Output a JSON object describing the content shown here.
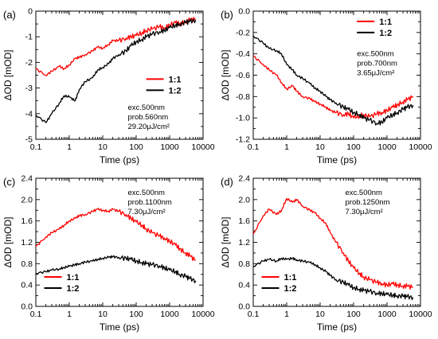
{
  "chart_data": [
    {
      "panel_label": "(a)",
      "type": "line",
      "xlabel": "Time (ps)",
      "ylabel": "ΔOD [mOD]",
      "xscale": "log",
      "xlim": [
        0.1,
        10000
      ],
      "xticks": [
        "0.1",
        "1",
        "10",
        "100",
        "1000",
        "10000"
      ],
      "ylim": [
        -5,
        0
      ],
      "yticks": [
        "-5",
        "-4",
        "-3",
        "-2",
        "-1",
        "0"
      ],
      "legend_position": "center-right",
      "annotation_lines": [
        "exc.500nm",
        "prob.560nm",
        "29.20μJ/cm²"
      ],
      "series": [
        {
          "name": "1:1",
          "color": "#ff0000",
          "x": [
            0.1,
            0.2,
            0.3,
            0.5,
            0.7,
            1,
            1.5,
            2,
            3,
            5,
            7,
            10,
            15,
            20,
            30,
            50,
            70,
            100,
            150,
            200,
            300,
            500,
            700,
            1000,
            1500,
            2000,
            3000,
            4000,
            6000
          ],
          "y": [
            -2.25,
            -2.5,
            -2.35,
            -2.15,
            -2.25,
            -2.1,
            -1.85,
            -1.8,
            -1.7,
            -1.55,
            -1.4,
            -1.45,
            -1.3,
            -1.15,
            -1.15,
            -1.05,
            -1.0,
            -0.95,
            -0.85,
            -0.75,
            -0.7,
            -0.6,
            -0.65,
            -0.55,
            -0.45,
            -0.5,
            -0.4,
            -0.35,
            -0.3
          ]
        },
        {
          "name": "1:2",
          "color": "#000000",
          "x": [
            0.1,
            0.2,
            0.3,
            0.5,
            0.7,
            1,
            1.5,
            2,
            3,
            5,
            7,
            10,
            15,
            20,
            30,
            50,
            70,
            100,
            150,
            200,
            300,
            500,
            700,
            1000,
            1500,
            2000,
            3000,
            4000,
            6000
          ],
          "y": [
            -4.05,
            -4.35,
            -4.0,
            -3.6,
            -3.3,
            -3.35,
            -3.5,
            -3.05,
            -2.75,
            -2.6,
            -2.3,
            -2.2,
            -2.05,
            -1.85,
            -1.7,
            -1.55,
            -1.35,
            -1.2,
            -1.1,
            -1.0,
            -0.9,
            -0.8,
            -0.75,
            -0.65,
            -0.55,
            -0.5,
            -0.45,
            -0.4,
            -0.35
          ]
        }
      ]
    },
    {
      "panel_label": "(b)",
      "type": "line",
      "xlabel": "Time (ps)",
      "ylabel": "ΔOD [mOD]",
      "xscale": "log",
      "xlim": [
        0.1,
        10000
      ],
      "xticks": [
        "0.1",
        "1",
        "10",
        "100",
        "1000",
        "10000"
      ],
      "ylim": [
        -1.2,
        0.0
      ],
      "yticks": [
        "-1.2",
        "-1.0",
        "-0.8",
        "-0.6",
        "-0.4",
        "-0.2",
        "0.0"
      ],
      "legend_position": "top-right",
      "annotation_lines": [
        "exc.500nm",
        "prob.700nm",
        "3.65μJ/cm²"
      ],
      "series": [
        {
          "name": "1:1",
          "color": "#ff0000",
          "x": [
            0.1,
            0.2,
            0.3,
            0.5,
            0.7,
            1,
            1.5,
            2,
            3,
            5,
            7,
            10,
            15,
            20,
            30,
            50,
            70,
            100,
            150,
            200,
            300,
            500,
            700,
            1000,
            1500,
            2000,
            3000,
            4000,
            6000
          ],
          "y": [
            -0.42,
            -0.5,
            -0.55,
            -0.6,
            -0.67,
            -0.73,
            -0.7,
            -0.75,
            -0.8,
            -0.82,
            -0.85,
            -0.87,
            -0.9,
            -0.93,
            -0.95,
            -0.97,
            -0.96,
            -1.0,
            -0.98,
            -0.97,
            -0.99,
            -0.96,
            -0.95,
            -0.93,
            -0.9,
            -0.88,
            -0.85,
            -0.83,
            -0.8
          ]
        },
        {
          "name": "1:2",
          "color": "#000000",
          "x": [
            0.1,
            0.2,
            0.3,
            0.5,
            0.7,
            1,
            1.5,
            2,
            3,
            5,
            7,
            10,
            15,
            20,
            30,
            50,
            70,
            100,
            150,
            200,
            300,
            500,
            700,
            1000,
            1500,
            2000,
            3000,
            4000,
            6000
          ],
          "y": [
            -0.23,
            -0.3,
            -0.35,
            -0.37,
            -0.4,
            -0.5,
            -0.55,
            -0.6,
            -0.63,
            -0.68,
            -0.72,
            -0.75,
            -0.8,
            -0.83,
            -0.86,
            -0.9,
            -0.92,
            -0.95,
            -0.97,
            -1.0,
            -1.02,
            -1.05,
            -1.04,
            -1.0,
            -0.97,
            -0.95,
            -0.92,
            -0.9,
            -0.88
          ]
        }
      ]
    },
    {
      "panel_label": "(c)",
      "type": "line",
      "xlabel": "Time (ps)",
      "ylabel": "ΔOD [mOD]",
      "xscale": "log",
      "xlim": [
        0.1,
        10000
      ],
      "xticks": [
        "0.1",
        "1",
        "10",
        "100",
        "1000",
        "10000"
      ],
      "ylim": [
        0.0,
        2.4
      ],
      "yticks": [
        "0.0",
        "0.4",
        "0.8",
        "1.2",
        "1.6",
        "2.0",
        "2.4"
      ],
      "legend_position": "bottom-left",
      "annotation_lines": [
        "exc.500nm",
        "prob.1100nm",
        "7.30μJ/cm²"
      ],
      "series": [
        {
          "name": "1:1",
          "color": "#ff0000",
          "x": [
            0.1,
            0.2,
            0.3,
            0.5,
            0.7,
            1,
            1.5,
            2,
            3,
            5,
            7,
            10,
            15,
            20,
            30,
            50,
            70,
            100,
            150,
            200,
            300,
            500,
            700,
            1000,
            1500,
            2000,
            3000,
            4000,
            6000
          ],
          "y": [
            1.12,
            1.3,
            1.38,
            1.45,
            1.52,
            1.6,
            1.65,
            1.7,
            1.72,
            1.78,
            1.82,
            1.8,
            1.78,
            1.82,
            1.78,
            1.72,
            1.65,
            1.58,
            1.52,
            1.45,
            1.38,
            1.32,
            1.28,
            1.22,
            1.15,
            1.08,
            1.0,
            0.95,
            0.86
          ]
        },
        {
          "name": "1:2",
          "color": "#000000",
          "x": [
            0.1,
            0.2,
            0.3,
            0.5,
            0.7,
            1,
            1.5,
            2,
            3,
            5,
            7,
            10,
            15,
            20,
            30,
            50,
            70,
            100,
            150,
            200,
            300,
            500,
            700,
            1000,
            1500,
            2000,
            3000,
            4000,
            6000
          ],
          "y": [
            0.62,
            0.65,
            0.68,
            0.7,
            0.73,
            0.75,
            0.78,
            0.8,
            0.83,
            0.85,
            0.88,
            0.9,
            0.92,
            0.93,
            0.92,
            0.9,
            0.88,
            0.85,
            0.82,
            0.8,
            0.78,
            0.76,
            0.72,
            0.68,
            0.65,
            0.6,
            0.56,
            0.52,
            0.48
          ]
        }
      ]
    },
    {
      "panel_label": "(d)",
      "type": "line",
      "xlabel": "Time (ps)",
      "ylabel": "ΔOD [mOD]",
      "xscale": "log",
      "xlim": [
        0.1,
        10000
      ],
      "xticks": [
        "0.1",
        "1",
        "10",
        "100",
        "1000",
        "10000"
      ],
      "ylim": [
        0.0,
        2.4
      ],
      "yticks": [
        "0.0",
        "0.4",
        "0.8",
        "1.2",
        "1.6",
        "2.0",
        "2.4"
      ],
      "legend_position": "bottom-left",
      "annotation_lines": [
        "exc.500nm",
        "prob.1250nm",
        "7.30μJ/cm²"
      ],
      "series": [
        {
          "name": "1:1",
          "color": "#ff0000",
          "x": [
            0.1,
            0.2,
            0.3,
            0.5,
            0.7,
            1,
            1.5,
            2,
            3,
            5,
            7,
            10,
            15,
            20,
            30,
            50,
            70,
            100,
            150,
            200,
            300,
            500,
            700,
            1000,
            1500,
            2000,
            3000,
            4000,
            6000
          ],
          "y": [
            1.35,
            1.7,
            1.82,
            1.72,
            1.8,
            2.02,
            1.95,
            2.0,
            1.88,
            1.8,
            1.75,
            1.65,
            1.55,
            1.38,
            1.2,
            1.0,
            0.85,
            0.72,
            0.62,
            0.55,
            0.5,
            0.45,
            0.43,
            0.4,
            0.42,
            0.4,
            0.38,
            0.38,
            0.36
          ]
        },
        {
          "name": "1:2",
          "color": "#000000",
          "x": [
            0.1,
            0.2,
            0.3,
            0.5,
            0.7,
            1,
            1.5,
            2,
            3,
            5,
            7,
            10,
            15,
            20,
            30,
            50,
            70,
            100,
            150,
            200,
            300,
            500,
            700,
            1000,
            1500,
            2000,
            3000,
            4000,
            6000
          ],
          "y": [
            0.75,
            0.85,
            0.88,
            0.85,
            0.9,
            0.88,
            0.9,
            0.87,
            0.85,
            0.82,
            0.78,
            0.72,
            0.65,
            0.58,
            0.5,
            0.45,
            0.4,
            0.35,
            0.32,
            0.3,
            0.28,
            0.25,
            0.24,
            0.22,
            0.21,
            0.2,
            0.19,
            0.18,
            0.17
          ]
        }
      ]
    }
  ]
}
